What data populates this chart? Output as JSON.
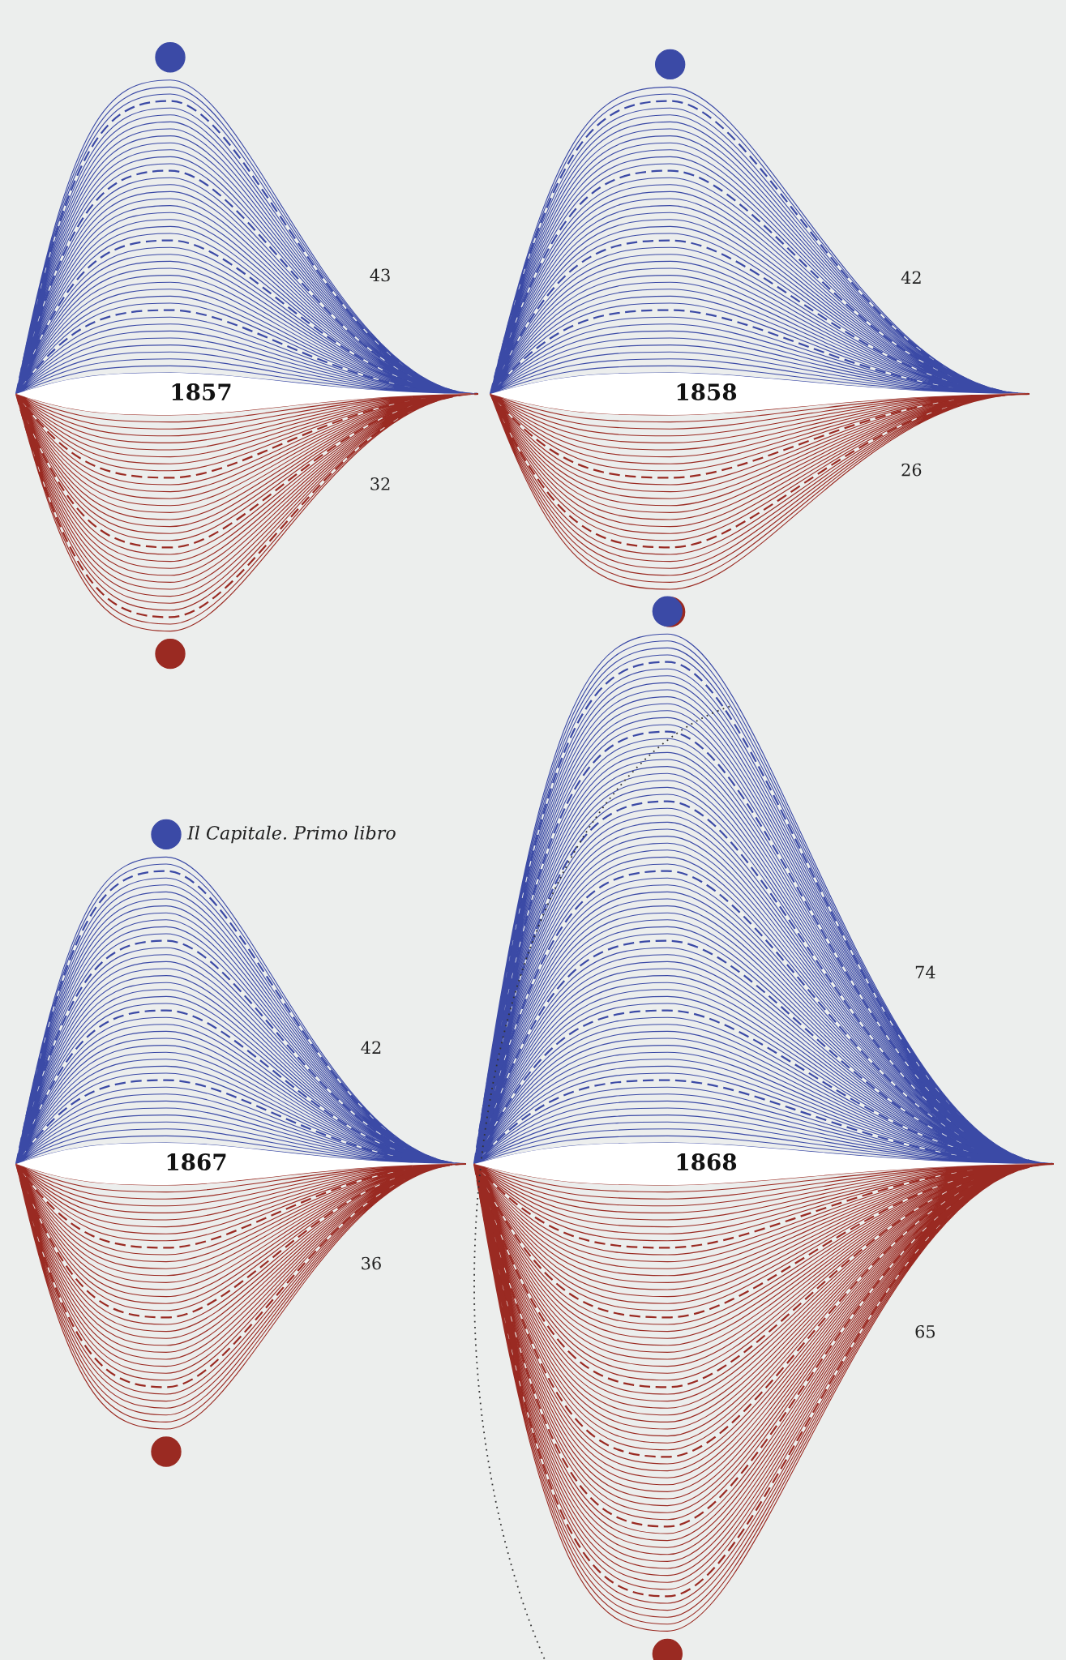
{
  "chart_data": {
    "type": "other",
    "categories": [
      "1857",
      "1858",
      "1867",
      "1868"
    ],
    "series": [
      {
        "color": "#3b4aa6",
        "values": [
          43,
          42,
          42,
          74
        ]
      },
      {
        "color": "#9a2a22",
        "values": [
          32,
          26,
          36,
          65
        ]
      }
    ],
    "data_labels": true,
    "annotations": [
      "Il Capitale. Primo libro"
    ]
  }
}
